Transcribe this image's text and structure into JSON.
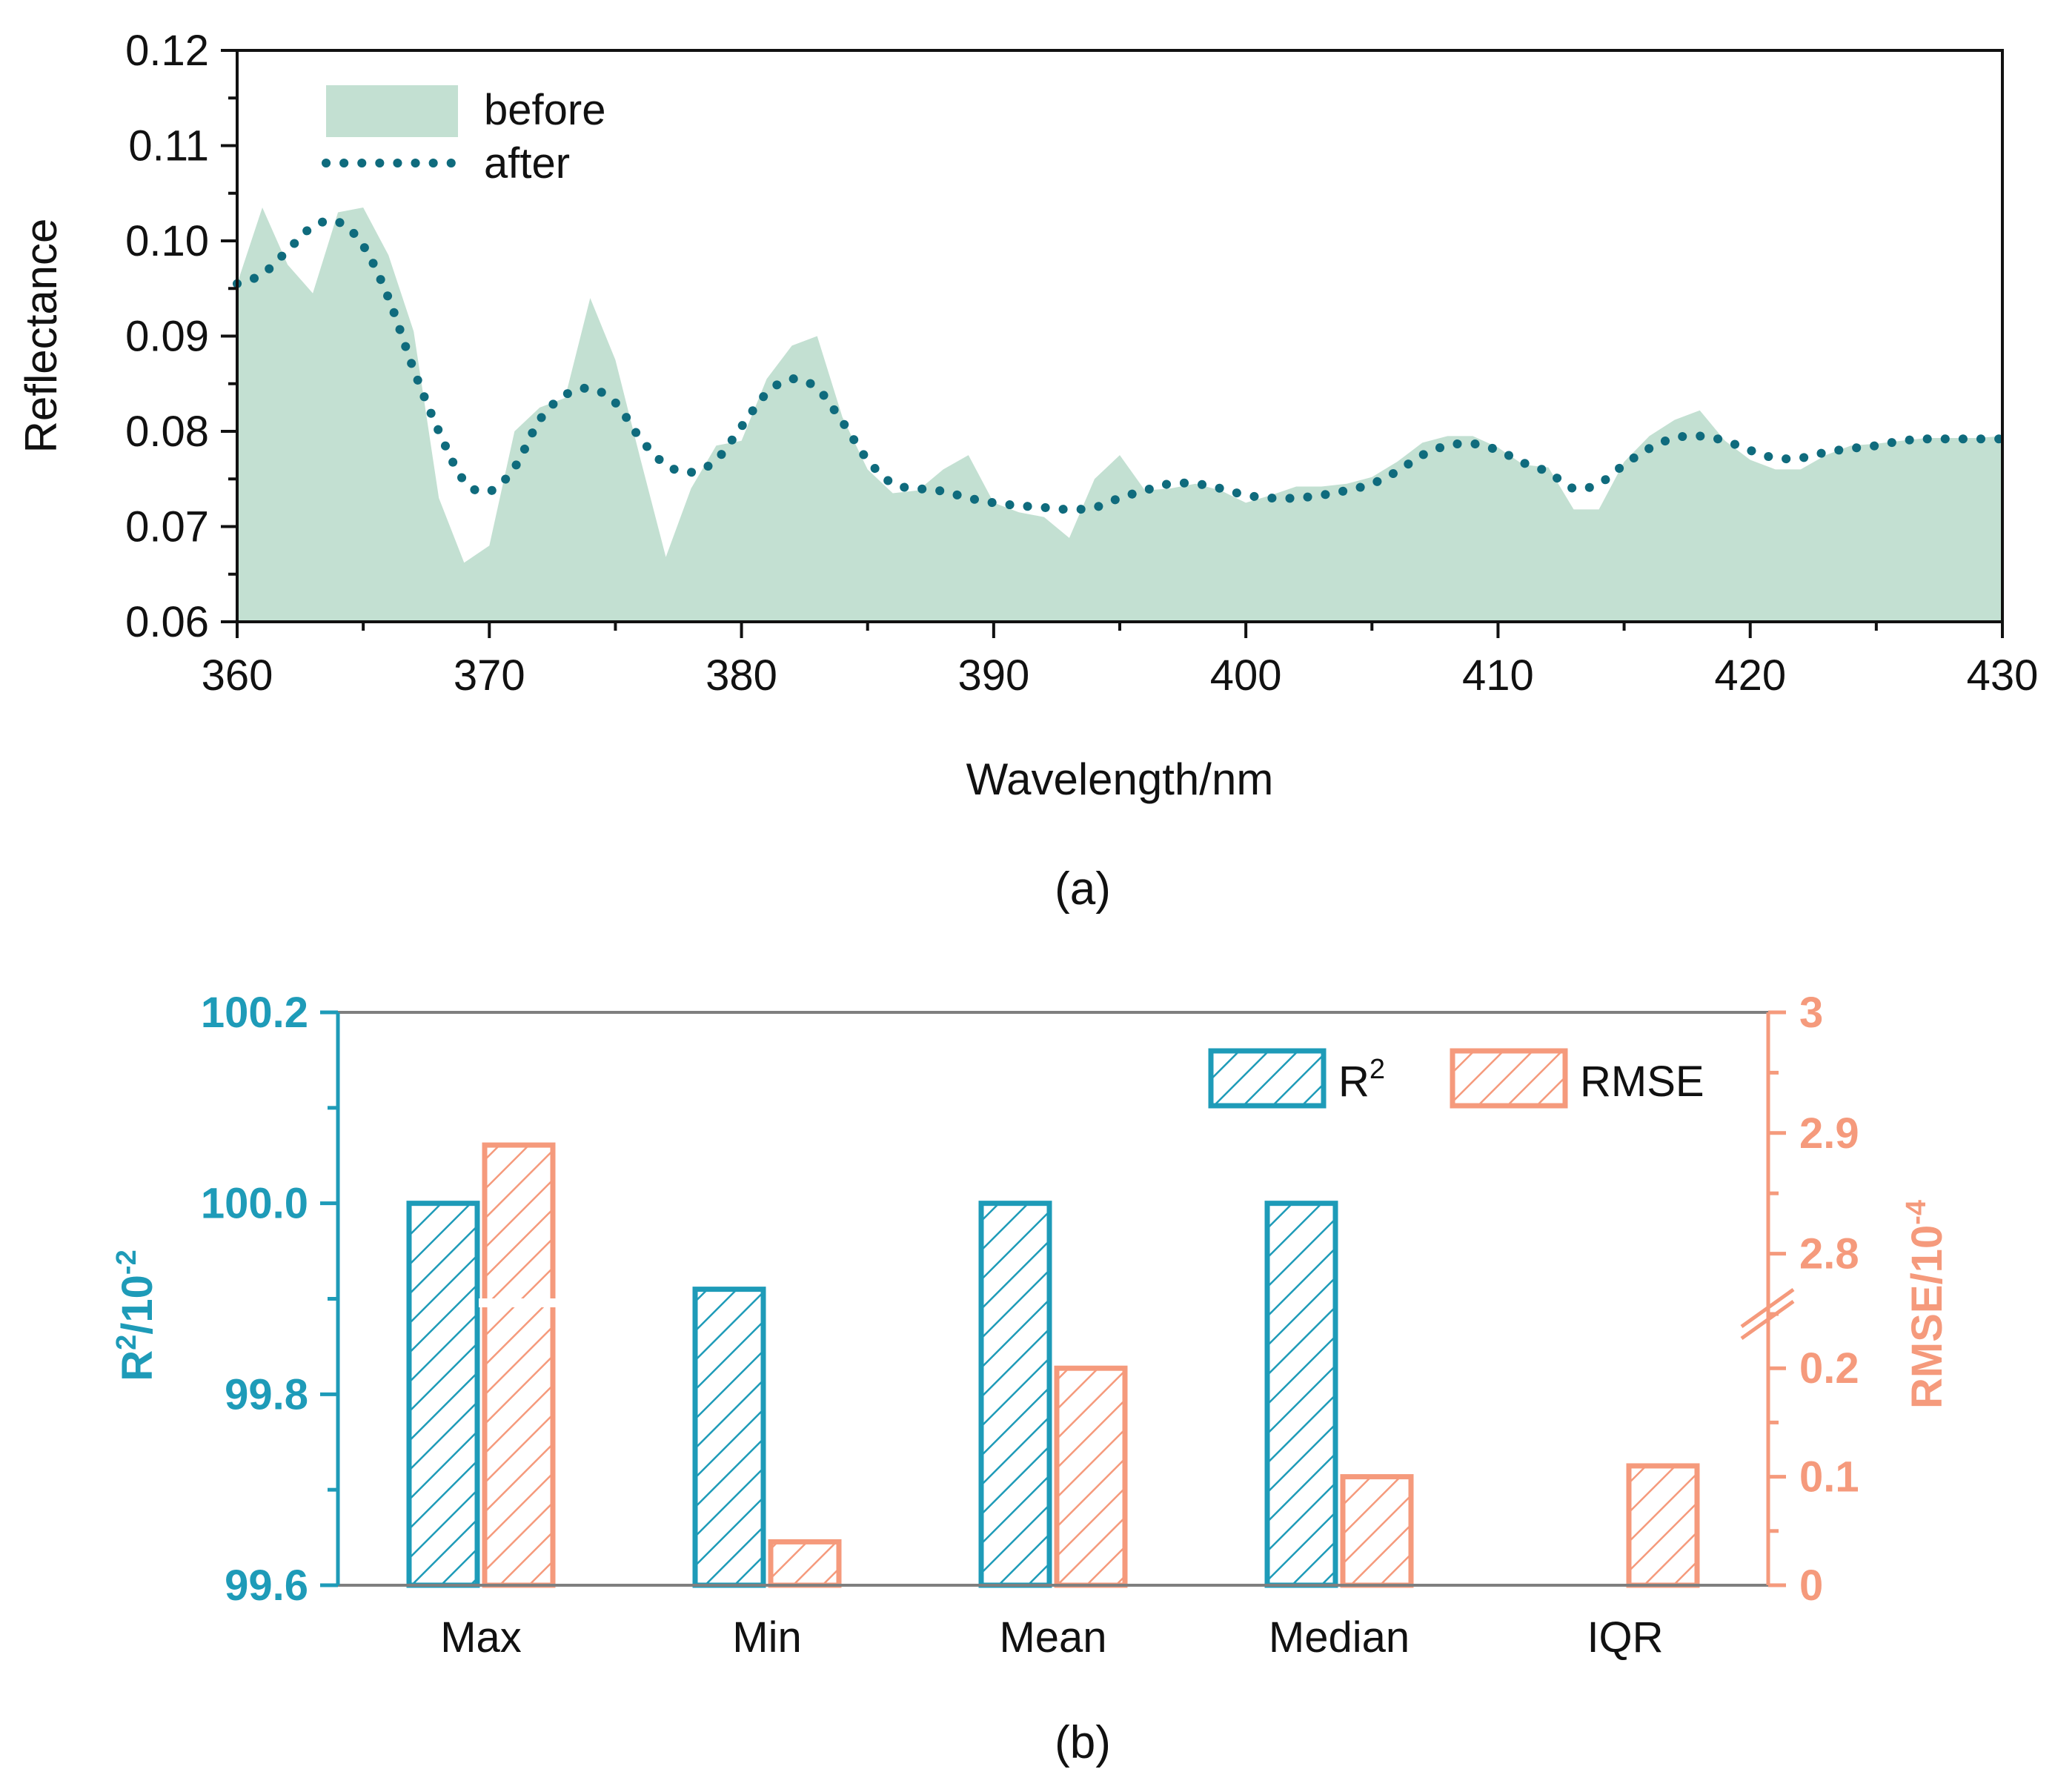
{
  "colors": {
    "before_fill": "#c3e0d2",
    "after_line": "#0f6b7d",
    "r2": "#1e9bb8",
    "rmse": "#f59a7c",
    "axis": "#111111",
    "frame_b": "#7f7f7f"
  },
  "chart_data": [
    {
      "id": "a",
      "type": "area",
      "caption": "(a)",
      "title": "",
      "xlabel": "Wavelength/nm",
      "ylabel": "Reflectance",
      "xlim": [
        360,
        430
      ],
      "ylim": [
        0.06,
        0.12
      ],
      "xticks": [
        "360",
        "370",
        "380",
        "390",
        "400",
        "410",
        "420",
        "430"
      ],
      "yticks": [
        "0.06",
        "0.07",
        "0.08",
        "0.09",
        "0.10",
        "0.11",
        "0.12"
      ],
      "legend_position": "top-left",
      "series": [
        {
          "name": "before",
          "style": "filled-area",
          "x": [
            360,
            361,
            362,
            363,
            364,
            365,
            366,
            367,
            368,
            369,
            370,
            371,
            372,
            373,
            374,
            375,
            376,
            377,
            378,
            379,
            380,
            381,
            382,
            383,
            384,
            385,
            386,
            387,
            388,
            389,
            390,
            391,
            392,
            393,
            394,
            395,
            396,
            397,
            398,
            399,
            400,
            401,
            402,
            403,
            404,
            405,
            406,
            407,
            408,
            409,
            410,
            411,
            412,
            413,
            414,
            415,
            416,
            417,
            418,
            419,
            420,
            421,
            422,
            423,
            424,
            425,
            426,
            427,
            428,
            429,
            430
          ],
          "values": [
            0.0955,
            0.1035,
            0.0975,
            0.0945,
            0.103,
            0.1035,
            0.0985,
            0.0905,
            0.073,
            0.0662,
            0.068,
            0.08,
            0.0825,
            0.0835,
            0.094,
            0.0875,
            0.077,
            0.0668,
            0.074,
            0.0785,
            0.079,
            0.0855,
            0.089,
            0.09,
            0.0815,
            0.076,
            0.0735,
            0.0738,
            0.076,
            0.0775,
            0.0725,
            0.0715,
            0.071,
            0.0688,
            0.075,
            0.0775,
            0.0738,
            0.074,
            0.0745,
            0.0738,
            0.0725,
            0.0733,
            0.0742,
            0.0742,
            0.0745,
            0.0752,
            0.0768,
            0.0788,
            0.0795,
            0.0795,
            0.0783,
            0.0765,
            0.0762,
            0.0718,
            0.0718,
            0.0768,
            0.0795,
            0.0812,
            0.0822,
            0.079,
            0.077,
            0.076,
            0.076,
            0.0775,
            0.0785,
            0.0787,
            0.079,
            0.0793,
            0.0793,
            0.0793,
            0.0795
          ]
        },
        {
          "name": "after",
          "style": "dotted-line",
          "x": [
            360,
            361,
            362,
            363,
            364,
            365,
            366,
            367,
            368,
            369,
            370,
            371,
            372,
            373,
            374,
            375,
            376,
            377,
            378,
            379,
            380,
            381,
            382,
            383,
            384,
            385,
            386,
            387,
            388,
            389,
            390,
            391,
            392,
            393,
            394,
            395,
            396,
            397,
            398,
            399,
            400,
            401,
            402,
            403,
            404,
            405,
            406,
            407,
            408,
            409,
            410,
            411,
            412,
            413,
            414,
            415,
            416,
            417,
            418,
            419,
            420,
            421,
            422,
            423,
            424,
            425,
            426,
            427,
            428,
            429,
            430
          ],
          "values": [
            0.0955,
            0.0965,
            0.099,
            0.1015,
            0.102,
            0.0995,
            0.094,
            0.0865,
            0.08,
            0.0748,
            0.0737,
            0.0762,
            0.0812,
            0.0838,
            0.0845,
            0.083,
            0.0792,
            0.0765,
            0.0757,
            0.077,
            0.0805,
            0.084,
            0.0855,
            0.0845,
            0.081,
            0.077,
            0.0745,
            0.074,
            0.0737,
            0.073,
            0.0725,
            0.0722,
            0.072,
            0.0718,
            0.072,
            0.073,
            0.0738,
            0.0745,
            0.0745,
            0.074,
            0.0733,
            0.073,
            0.073,
            0.0733,
            0.0738,
            0.0745,
            0.0758,
            0.0775,
            0.0785,
            0.0787,
            0.078,
            0.0767,
            0.0757,
            0.074,
            0.0745,
            0.0765,
            0.0782,
            0.0793,
            0.0795,
            0.079,
            0.078,
            0.0772,
            0.0772,
            0.0778,
            0.0782,
            0.0785,
            0.079,
            0.0792,
            0.0792,
            0.0792,
            0.0792
          ]
        }
      ]
    },
    {
      "id": "b",
      "type": "bar",
      "caption": "(b)",
      "title": "",
      "xlabel": "",
      "categories": [
        "Max",
        "Min",
        "Mean",
        "Median",
        "IQR"
      ],
      "legend_position": "top-right",
      "y_left": {
        "label_base": "R",
        "label_sup": "2",
        "label_rest": "/10",
        "label_exp": "-2",
        "ylim": [
          99.6,
          100.2
        ],
        "ticks": [
          "99.6",
          "99.8",
          "100.0",
          "100.2"
        ]
      },
      "y_right": {
        "label_base": "RMSE/10",
        "label_exp": "-4",
        "break": true,
        "lower_range": [
          0,
          0.25
        ],
        "upper_range": [
          2.75,
          3.0
        ],
        "ticks_lower": [
          "0",
          "0.1",
          "0.2"
        ],
        "ticks_upper": [
          "2.8",
          "2.9",
          "3"
        ]
      },
      "series": [
        {
          "name": "R",
          "name_sup": "2",
          "axis": "left",
          "values": [
            100.0,
            99.91,
            100.0,
            100.0,
            99.6
          ]
        },
        {
          "name": "RMSE",
          "axis": "right",
          "values": [
            2.89,
            0.04,
            0.2,
            0.1,
            0.11
          ]
        }
      ]
    }
  ]
}
